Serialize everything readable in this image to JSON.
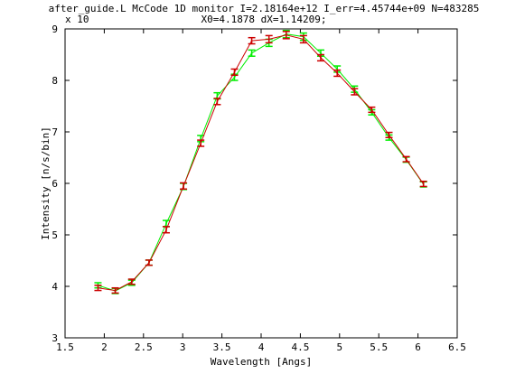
{
  "chart_data": {
    "type": "line",
    "title": "after_guide.L McCode 1D monitor I=2.18164e+12 I_err=4.45744e+09 N=483285",
    "subtitle": "X0=4.1878 dX=1.14209;",
    "exponent_label": "x 10",
    "xlabel": "Wavelength [Angs]",
    "ylabel": "Intensity [n/s/bin]",
    "xlim": [
      1.5,
      6.5
    ],
    "ylim": [
      3,
      9
    ],
    "x_ticks": [
      1.5,
      2,
      2.5,
      3,
      3.5,
      4,
      4.5,
      5,
      5.5,
      6,
      6.5
    ],
    "x_tick_labels": [
      "1.5",
      "2",
      "2.5",
      "3",
      "3.5",
      "4",
      "4.5",
      "5",
      "5.5",
      "6",
      "6.5"
    ],
    "y_ticks": [
      3,
      4,
      5,
      6,
      7,
      8,
      9
    ],
    "y_tick_labels": [
      "3",
      "4",
      "5",
      "6",
      "7",
      "8",
      "9"
    ],
    "grid": false,
    "legend": "none",
    "series": [
      {
        "color": "#00ee00",
        "x": [
          1.92,
          2.14,
          2.35,
          2.57,
          2.79,
          3.01,
          3.23,
          3.44,
          3.66,
          3.88,
          4.1,
          4.32,
          4.54,
          4.76,
          4.97,
          5.19,
          5.41,
          5.63,
          5.85,
          6.07
        ],
        "y": [
          4.02,
          3.91,
          4.07,
          4.46,
          5.22,
          5.94,
          6.87,
          7.7,
          8.06,
          8.53,
          8.73,
          8.9,
          8.85,
          8.53,
          8.22,
          7.83,
          7.38,
          6.89,
          6.46,
          5.98
        ],
        "err": [
          0.05,
          0.05,
          0.05,
          0.05,
          0.06,
          0.06,
          0.06,
          0.06,
          0.06,
          0.06,
          0.07,
          0.07,
          0.07,
          0.06,
          0.06,
          0.06,
          0.05,
          0.05,
          0.05,
          0.05
        ]
      },
      {
        "color": "#cc0000",
        "x": [
          1.92,
          2.14,
          2.35,
          2.57,
          2.79,
          3.01,
          3.23,
          3.44,
          3.66,
          3.88,
          4.1,
          4.32,
          4.54,
          4.76,
          4.97,
          5.19,
          5.41,
          5.63,
          5.85,
          6.07
        ],
        "y": [
          3.97,
          3.92,
          4.09,
          4.46,
          5.1,
          5.95,
          6.78,
          7.59,
          8.16,
          8.77,
          8.8,
          8.88,
          8.8,
          8.44,
          8.14,
          7.78,
          7.43,
          6.94,
          6.47,
          5.99
        ],
        "err": [
          0.05,
          0.05,
          0.05,
          0.05,
          0.06,
          0.06,
          0.06,
          0.06,
          0.06,
          0.06,
          0.07,
          0.07,
          0.07,
          0.06,
          0.06,
          0.06,
          0.05,
          0.05,
          0.05,
          0.05
        ]
      }
    ]
  }
}
